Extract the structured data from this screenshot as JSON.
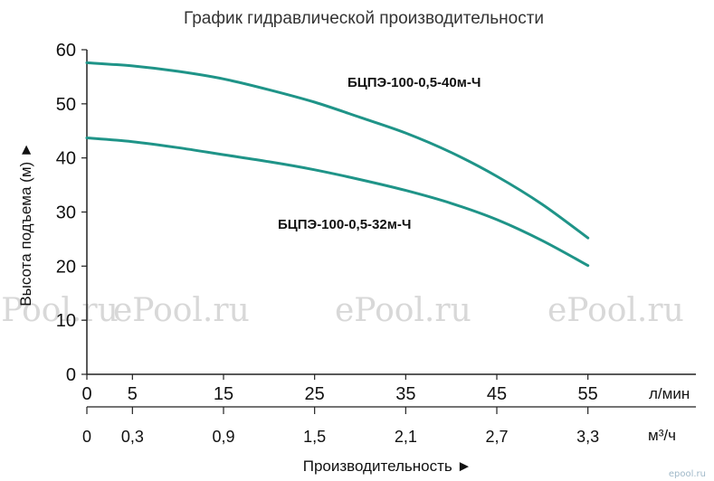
{
  "chart_data": {
    "type": "line",
    "title": "График гидравлической производительности",
    "ylabel": "Высота подъема (м) ►",
    "xlabel": "Производительность ►",
    "ylim": [
      0,
      60
    ],
    "yticks": [
      "0",
      "10",
      "20",
      "30",
      "40",
      "50",
      "60"
    ],
    "xlim": [
      0,
      60
    ],
    "xticks_primary": [
      "0",
      "5",
      "15",
      "25",
      "35",
      "45",
      "55"
    ],
    "xticks_primary_values": [
      0,
      5,
      15,
      25,
      35,
      45,
      55
    ],
    "x_unit_primary": "л/мин",
    "xticks_secondary": [
      "0",
      "0,3",
      "0,9",
      "1,5",
      "2,1",
      "2,7",
      "3,3"
    ],
    "x_unit_secondary": "м³/ч",
    "grid": false,
    "series": [
      {
        "name": "БЦПЭ-100-0,5-40м-Ч",
        "color": "#1f9488",
        "x": [
          0,
          5,
          10,
          15,
          20,
          25,
          30,
          35,
          40,
          45,
          50,
          55
        ],
        "values": [
          57.6,
          57.0,
          56.0,
          54.6,
          52.6,
          50.3,
          47.5,
          44.6,
          41.0,
          36.6,
          31.4,
          25.2
        ]
      },
      {
        "name": "БЦПЭ-100-0,5-32м-Ч",
        "color": "#1f9488",
        "x": [
          0,
          5,
          10,
          15,
          20,
          25,
          30,
          35,
          40,
          45,
          50,
          55
        ],
        "values": [
          43.7,
          43.0,
          41.9,
          40.6,
          39.3,
          37.8,
          36.0,
          34.0,
          31.6,
          28.6,
          24.7,
          20.1
        ]
      }
    ]
  },
  "watermark": "ePool.ru",
  "brand": "epool.ru"
}
